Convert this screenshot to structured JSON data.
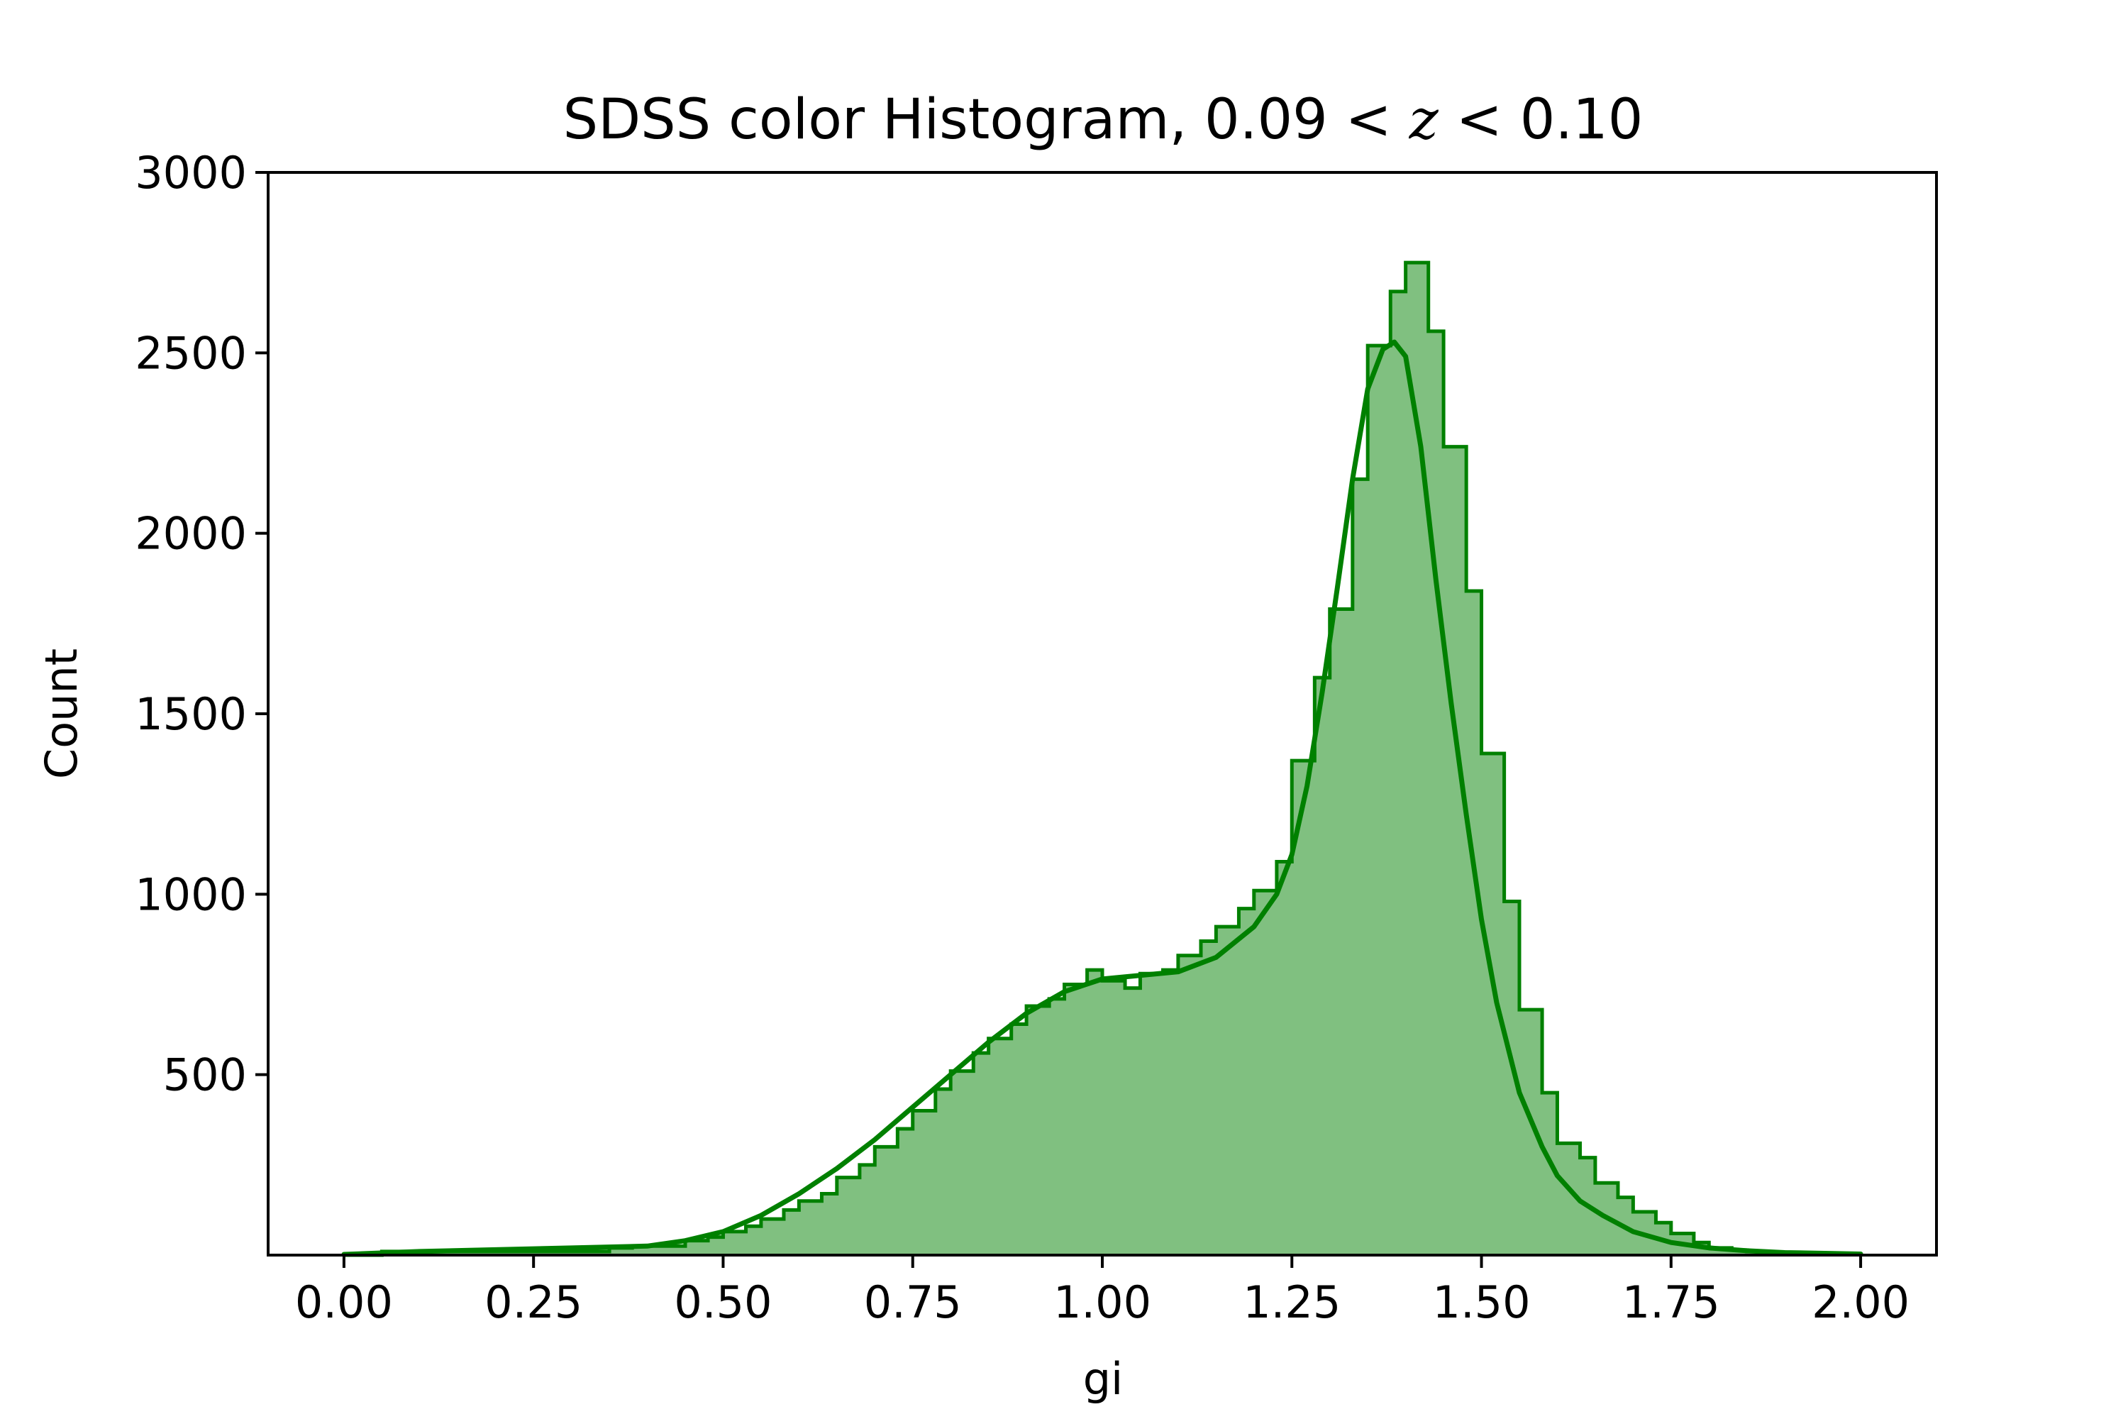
{
  "chart_data": {
    "type": "bar",
    "title": "SDSS color Histogram, 0.09 < z < 0.10",
    "title_parts": {
      "prefix": "SDSS color Histogram, 0.09",
      "lt1": "<",
      "z": "z",
      "lt2": "<",
      "suffix": "0.10"
    },
    "xlabel": "gi",
    "ylabel": "Count",
    "xlim": [
      -0.1,
      2.1
    ],
    "ylim": [
      0,
      3000
    ],
    "x_ticks": [
      {
        "value": 0.0,
        "label": "0.00"
      },
      {
        "value": 0.25,
        "label": "0.25"
      },
      {
        "value": 0.5,
        "label": "0.50"
      },
      {
        "value": 0.75,
        "label": "0.75"
      },
      {
        "value": 1.0,
        "label": "1.00"
      },
      {
        "value": 1.25,
        "label": "1.25"
      },
      {
        "value": 1.5,
        "label": "1.50"
      },
      {
        "value": 1.75,
        "label": "1.75"
      },
      {
        "value": 2.0,
        "label": "2.00"
      }
    ],
    "y_ticks": [
      {
        "value": 500,
        "label": "500"
      },
      {
        "value": 1000,
        "label": "1000"
      },
      {
        "value": 1500,
        "label": "1500"
      },
      {
        "value": 2000,
        "label": "2000"
      },
      {
        "value": 2500,
        "label": "2500"
      },
      {
        "value": 3000,
        "label": "3000"
      }
    ],
    "colors": {
      "bar_fill": "#80c080",
      "bar_edge": "#008000",
      "kde_line": "#008000",
      "axes": "#000000"
    },
    "grid": false,
    "histogram": {
      "bin_edges": [
        0.0,
        0.05,
        0.35,
        0.38,
        0.45,
        0.48,
        0.5,
        0.53,
        0.55,
        0.58,
        0.6,
        0.63,
        0.65,
        0.68,
        0.7,
        0.73,
        0.75,
        0.78,
        0.8,
        0.83,
        0.85,
        0.88,
        0.9,
        0.93,
        0.95,
        0.98,
        1.0,
        1.03,
        1.05,
        1.08,
        1.1,
        1.13,
        1.15,
        1.18,
        1.2,
        1.23,
        1.25,
        1.28,
        1.3,
        1.33,
        1.35,
        1.38,
        1.4,
        1.43,
        1.45,
        1.48,
        1.5,
        1.53,
        1.55,
        1.58,
        1.6,
        1.63,
        1.65,
        1.68,
        1.7,
        1.73,
        1.75,
        1.78,
        1.8,
        1.83,
        1.85,
        1.88,
        1.9,
        1.93,
        1.95,
        1.98,
        2.0
      ],
      "counts": [
        0,
        10,
        20,
        25,
        40,
        50,
        65,
        80,
        100,
        125,
        150,
        170,
        215,
        250,
        300,
        350,
        400,
        460,
        510,
        560,
        600,
        640,
        690,
        710,
        750,
        790,
        760,
        740,
        780,
        790,
        830,
        870,
        910,
        960,
        1010,
        1090,
        1370,
        1600,
        1790,
        2150,
        2520,
        2670,
        2750,
        2560,
        2240,
        1840,
        1390,
        980,
        680,
        450,
        310,
        270,
        200,
        160,
        120,
        90,
        60,
        35,
        20,
        14,
        10,
        8,
        6,
        4,
        3,
        2
      ]
    },
    "kde": {
      "x": [
        0.0,
        0.1,
        0.2,
        0.3,
        0.4,
        0.45,
        0.5,
        0.55,
        0.6,
        0.65,
        0.7,
        0.75,
        0.8,
        0.85,
        0.9,
        0.95,
        1.0,
        1.05,
        1.1,
        1.15,
        1.2,
        1.23,
        1.25,
        1.27,
        1.29,
        1.31,
        1.33,
        1.35,
        1.37,
        1.385,
        1.4,
        1.42,
        1.44,
        1.46,
        1.48,
        1.5,
        1.52,
        1.55,
        1.58,
        1.6,
        1.63,
        1.66,
        1.7,
        1.75,
        1.8,
        1.85,
        1.9,
        2.0
      ],
      "y": [
        2,
        10,
        15,
        20,
        25,
        40,
        65,
        110,
        170,
        240,
        320,
        410,
        500,
        590,
        670,
        730,
        765,
        775,
        785,
        825,
        910,
        1000,
        1110,
        1300,
        1560,
        1850,
        2150,
        2400,
        2510,
        2530,
        2490,
        2240,
        1870,
        1530,
        1220,
        930,
        700,
        450,
        300,
        220,
        150,
        110,
        65,
        35,
        20,
        12,
        7,
        3
      ]
    }
  }
}
